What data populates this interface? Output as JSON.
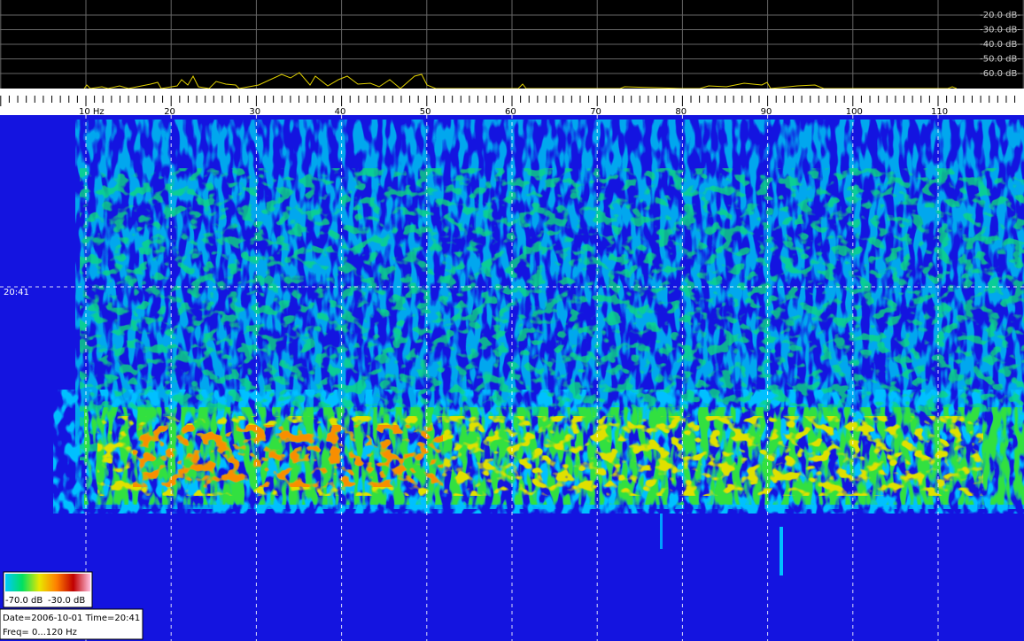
{
  "spectrum_scale": {
    "labels": [
      "-20.0 dB-",
      "-30.0 dB-",
      "-40.0 dB-",
      "-50.0 dB-",
      "-60.0 dB-"
    ]
  },
  "frequency_axis": {
    "labels": [
      "10 Hz",
      "20",
      "30",
      "40",
      "50",
      "60",
      "70",
      "80",
      "90",
      "100",
      "110"
    ]
  },
  "time_marker": "20:41",
  "color_bar": {
    "min_label": "-70.0 dB",
    "max_label": "-30.0 dB"
  },
  "info": {
    "line1": "Date=2006-10-01 Time=20:41",
    "line2": "Freq= 0...120 Hz"
  }
}
